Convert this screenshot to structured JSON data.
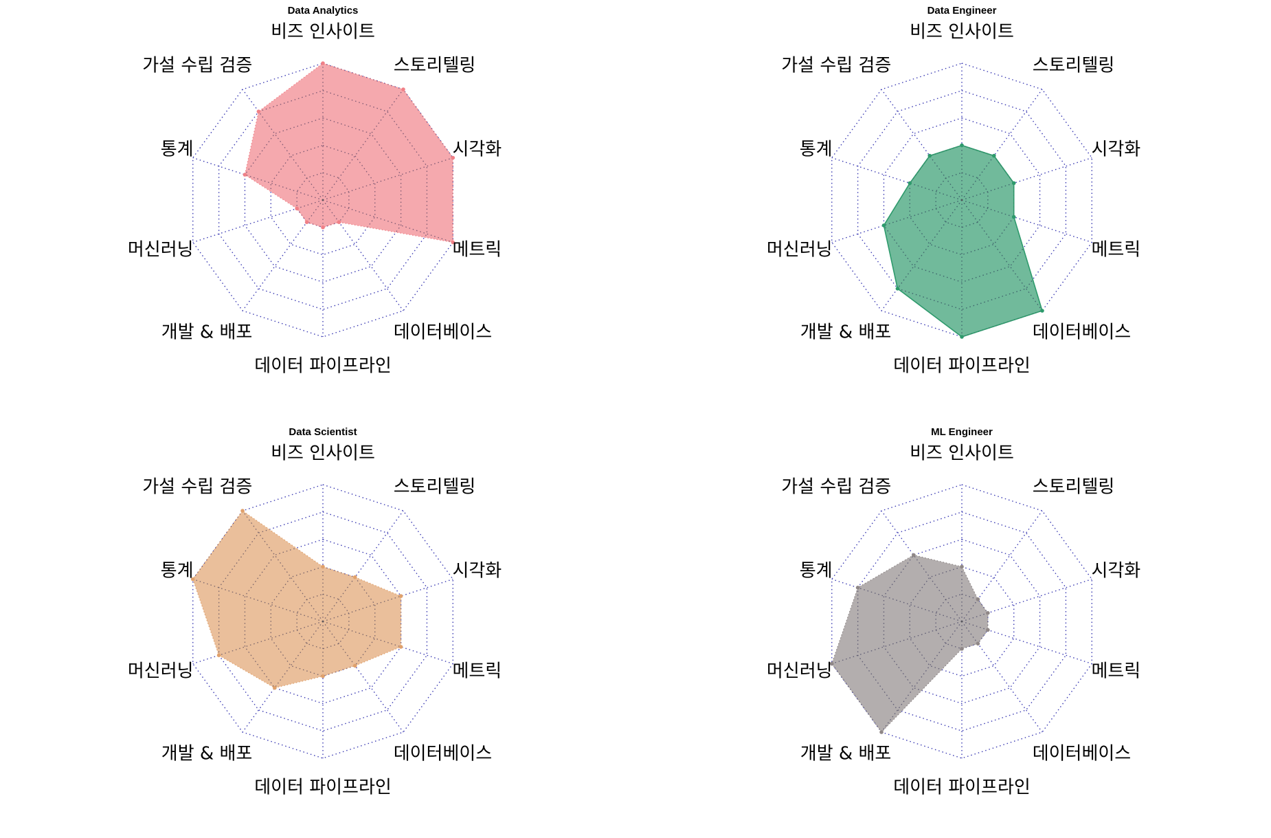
{
  "chart_data": [
    {
      "type": "radar",
      "title": "Data Analytics",
      "categories": [
        "비즈 인사이트",
        "스토리텔링",
        "시각화",
        "메트릭",
        "데이터베이스",
        "데이터 파이프라인",
        "개발 & 배포",
        "머신러닝",
        "통계",
        "가설 수립 검증"
      ],
      "values": [
        5,
        5,
        5,
        5,
        1,
        1,
        1,
        1,
        3,
        4
      ],
      "rmax": 5,
      "levels": [
        1,
        2,
        3,
        4,
        5
      ],
      "color": "#f08087",
      "line_style": "dotted",
      "grid": true
    },
    {
      "type": "radar",
      "title": "Data Engineer",
      "categories": [
        "비즈 인사이트",
        "스토리텔링",
        "시각화",
        "메트릭",
        "데이터베이스",
        "데이터 파이프라인",
        "개발 & 배포",
        "머신러닝",
        "통계",
        "가설 수립 검증"
      ],
      "values": [
        2,
        2,
        2,
        2,
        5,
        5,
        4,
        3,
        2,
        2
      ],
      "rmax": 5,
      "levels": [
        1,
        2,
        3,
        4,
        5
      ],
      "color": "#2e9a6c",
      "line_style": "solid",
      "grid": true
    },
    {
      "type": "radar",
      "title": "Data Scientist",
      "categories": [
        "비즈 인사이트",
        "스토리텔링",
        "시각화",
        "메트릭",
        "데이터베이스",
        "데이터 파이프라인",
        "개발 & 배포",
        "머신러닝",
        "통계",
        "가설 수립 검증"
      ],
      "values": [
        2,
        2,
        3,
        3,
        2,
        2,
        3,
        4,
        5,
        5
      ],
      "rmax": 5,
      "levels": [
        1,
        2,
        3,
        4,
        5
      ],
      "color": "#e0a16c",
      "line_style": "dotted",
      "grid": true
    },
    {
      "type": "radar",
      "title": "ML Engineer",
      "categories": [
        "비즈 인사이트",
        "스토리텔링",
        "시각화",
        "메트릭",
        "데이터베이스",
        "데이터 파이프라인",
        "개발 & 배포",
        "머신러닝",
        "통계",
        "가설 수립 검증"
      ],
      "values": [
        2,
        1,
        1,
        1,
        1,
        1,
        5,
        5,
        4,
        3
      ],
      "rmax": 5,
      "levels": [
        1,
        2,
        3,
        4,
        5
      ],
      "color": "#8f8787",
      "line_style": "dotted",
      "grid": true
    }
  ]
}
